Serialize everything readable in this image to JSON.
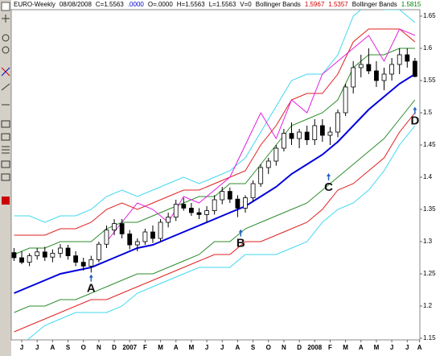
{
  "chart_data": {
    "type": "candlestick",
    "header": [
      {
        "text": "EURO-Weekly",
        "color": "#000000"
      },
      {
        "text": "08/08/2008",
        "color": "#000000"
      },
      {
        "text": "C=1.5563",
        "color": "#000000"
      },
      {
        "text": ".0000",
        "color": "#0000cc"
      },
      {
        "text": "O=.0000",
        "color": "#000000"
      },
      {
        "text": "H=1.5563",
        "color": "#000000"
      },
      {
        "text": "L=1.5563",
        "color": "#000000"
      },
      {
        "text": "V=0",
        "color": "#000000"
      },
      {
        "text": "Bollinger Bands",
        "color": "#000000"
      },
      {
        "text": "1.5967",
        "color": "#d00000"
      },
      {
        "text": "1.5357",
        "color": "#d00000"
      },
      {
        "text": "Bollinger Bands",
        "color": "#000000"
      },
      {
        "text": "1.5815",
        "color": "#008000"
      }
    ],
    "xlim": [
      -0.68,
      25.82
    ],
    "ylim": [
      1.1475,
      1.66
    ],
    "yticks": [
      1.15,
      1.2,
      1.25,
      1.3,
      1.35,
      1.4,
      1.45,
      1.5,
      1.55,
      1.6,
      1.65
    ],
    "xticks": [
      {
        "value": 0,
        "label": "J"
      },
      {
        "value": 1,
        "label": "J"
      },
      {
        "value": 2,
        "label": "A"
      },
      {
        "value": 3,
        "label": "S"
      },
      {
        "value": 4,
        "label": "O"
      },
      {
        "value": 5,
        "label": "N"
      },
      {
        "value": 6,
        "label": "D"
      },
      {
        "value": 7,
        "label": "2007"
      },
      {
        "value": 8,
        "label": "F"
      },
      {
        "value": 9,
        "label": "M"
      },
      {
        "value": 10,
        "label": "A"
      },
      {
        "value": 11,
        "label": "M"
      },
      {
        "value": 12,
        "label": "J"
      },
      {
        "value": 13,
        "label": "J"
      },
      {
        "value": 14,
        "label": "A"
      },
      {
        "value": 15,
        "label": "S"
      },
      {
        "value": 16,
        "label": "O"
      },
      {
        "value": 17,
        "label": "N"
      },
      {
        "value": 18,
        "label": "D"
      },
      {
        "value": 19,
        "label": "2008"
      },
      {
        "value": 20,
        "label": "F"
      },
      {
        "value": 21,
        "label": "M"
      },
      {
        "value": 22,
        "label": "A"
      },
      {
        "value": 23,
        "label": "M"
      },
      {
        "value": 24,
        "label": "J"
      },
      {
        "value": 25,
        "label": "J"
      },
      {
        "value": 25.8,
        "label": "A"
      }
    ],
    "candles": {
      "up_color": "#ffffff",
      "down_color": "#000000",
      "x": [
        -0.5,
        0,
        0.5,
        1,
        1.5,
        2,
        2.5,
        3,
        3.5,
        4,
        4.5,
        5,
        5.5,
        6,
        6.5,
        7,
        7.5,
        8,
        8.5,
        9,
        9.5,
        10,
        10.5,
        11,
        11.5,
        12,
        12.5,
        13,
        13.5,
        14,
        14.5,
        15,
        15.5,
        16,
        16.5,
        17,
        17.5,
        18,
        18.5,
        19,
        19.5,
        20,
        20.5,
        21,
        21.5,
        22,
        22.5,
        23,
        23.5,
        24,
        24.5,
        25,
        25.5
      ],
      "open": [
        1.283,
        1.275,
        1.268,
        1.278,
        1.284,
        1.276,
        1.282,
        1.29,
        1.278,
        1.268,
        1.262,
        1.272,
        1.296,
        1.318,
        1.328,
        1.312,
        1.295,
        1.3,
        1.315,
        1.305,
        1.33,
        1.338,
        1.358,
        1.352,
        1.345,
        1.342,
        1.348,
        1.365,
        1.378,
        1.366,
        1.352,
        1.368,
        1.39,
        1.415,
        1.425,
        1.445,
        1.468,
        1.46,
        1.47,
        1.458,
        1.48,
        1.465,
        1.47,
        1.5,
        1.54,
        1.57,
        1.575,
        1.565,
        1.55,
        1.56,
        1.575,
        1.59,
        1.58
      ],
      "high": [
        1.29,
        1.285,
        1.282,
        1.29,
        1.292,
        1.288,
        1.296,
        1.295,
        1.285,
        1.275,
        1.278,
        1.3,
        1.325,
        1.335,
        1.335,
        1.318,
        1.305,
        1.32,
        1.325,
        1.335,
        1.345,
        1.365,
        1.368,
        1.36,
        1.352,
        1.355,
        1.372,
        1.385,
        1.384,
        1.372,
        1.372,
        1.395,
        1.42,
        1.43,
        1.45,
        1.475,
        1.485,
        1.475,
        1.48,
        1.49,
        1.49,
        1.478,
        1.505,
        1.545,
        1.58,
        1.59,
        1.6,
        1.58,
        1.57,
        1.585,
        1.6,
        1.6,
        1.585
      ],
      "low": [
        1.27,
        1.265,
        1.262,
        1.272,
        1.27,
        1.268,
        1.275,
        1.272,
        1.262,
        1.255,
        1.252,
        1.268,
        1.29,
        1.31,
        1.305,
        1.288,
        1.285,
        1.295,
        1.298,
        1.3,
        1.322,
        1.332,
        1.348,
        1.34,
        1.335,
        1.33,
        1.342,
        1.358,
        1.36,
        1.338,
        1.345,
        1.362,
        1.385,
        1.405,
        1.418,
        1.44,
        1.45,
        1.445,
        1.45,
        1.45,
        1.455,
        1.45,
        1.462,
        1.495,
        1.53,
        1.555,
        1.56,
        1.54,
        1.535,
        1.55,
        1.56,
        1.57,
        1.555
      ],
      "close": [
        1.275,
        1.268,
        1.278,
        1.284,
        1.276,
        1.282,
        1.29,
        1.278,
        1.268,
        1.262,
        1.272,
        1.296,
        1.318,
        1.328,
        1.312,
        1.295,
        1.3,
        1.315,
        1.305,
        1.33,
        1.338,
        1.358,
        1.352,
        1.345,
        1.342,
        1.348,
        1.365,
        1.378,
        1.366,
        1.352,
        1.368,
        1.39,
        1.415,
        1.425,
        1.445,
        1.468,
        1.46,
        1.47,
        1.458,
        1.48,
        1.465,
        1.47,
        1.5,
        1.54,
        1.57,
        1.575,
        1.565,
        1.55,
        1.56,
        1.575,
        1.59,
        1.58,
        1.5563
      ]
    },
    "lines": [
      {
        "color": "#0000dd",
        "width": 2,
        "x": [
          -0.5,
          0.5,
          1.5,
          2.5,
          3.5,
          4.5,
          5.5,
          6.5,
          7.5,
          8.5,
          9.5,
          10.5,
          11.5,
          12.5,
          13.5,
          14.5,
          15.5,
          16.5,
          17.5,
          18.5,
          19.5,
          20.5,
          21.5,
          22.5,
          23.5,
          24.5,
          25.5
        ],
        "values": [
          1.22,
          1.23,
          1.24,
          1.25,
          1.255,
          1.26,
          1.27,
          1.28,
          1.29,
          1.295,
          1.305,
          1.315,
          1.325,
          1.335,
          1.345,
          1.355,
          1.37,
          1.385,
          1.405,
          1.42,
          1.435,
          1.455,
          1.48,
          1.505,
          1.525,
          1.545,
          1.56
        ]
      },
      {
        "color": "#2e8b2e",
        "width": 1,
        "x": [
          -0.5,
          0.5,
          1.5,
          2.5,
          3.5,
          4.5,
          5.5,
          6.5,
          7.5,
          8.5,
          9.5,
          10.5,
          11.5,
          12.5,
          13.5,
          14.5,
          15.5,
          16.5,
          17.5,
          18.5,
          19.5,
          20.5,
          21.5,
          22.5,
          23.5,
          24.5,
          25.5
        ],
        "values": [
          1.28,
          1.29,
          1.29,
          1.3,
          1.3,
          1.3,
          1.32,
          1.33,
          1.33,
          1.34,
          1.35,
          1.36,
          1.37,
          1.37,
          1.39,
          1.39,
          1.42,
          1.45,
          1.48,
          1.49,
          1.5,
          1.52,
          1.57,
          1.59,
          1.59,
          1.6,
          1.6
        ]
      },
      {
        "color": "#2e8b2e",
        "width": 1,
        "x": [
          -0.5,
          0.5,
          1.5,
          2.5,
          3.5,
          4.5,
          5.5,
          6.5,
          7.5,
          8.5,
          9.5,
          10.5,
          11.5,
          12.5,
          13.5,
          14.5,
          15.5,
          16.5,
          17.5,
          18.5,
          19.5,
          20.5,
          21.5,
          22.5,
          23.5,
          24.5,
          25.5
        ],
        "values": [
          1.19,
          1.2,
          1.2,
          1.21,
          1.21,
          1.22,
          1.23,
          1.24,
          1.25,
          1.25,
          1.26,
          1.27,
          1.28,
          1.3,
          1.3,
          1.32,
          1.33,
          1.34,
          1.35,
          1.36,
          1.38,
          1.4,
          1.42,
          1.44,
          1.46,
          1.49,
          1.52
        ]
      },
      {
        "color": "#e02020",
        "width": 1,
        "x": [
          -0.5,
          0.5,
          1.5,
          2.5,
          3.5,
          4.5,
          5.5,
          6.5,
          7.5,
          8.5,
          9.5,
          10.5,
          11.5,
          12.5,
          13.5,
          14.5,
          15.5,
          16.5,
          17.5,
          18.5,
          19.5,
          20.5,
          21.5,
          22.5,
          23.5,
          24.5,
          25.5
        ],
        "values": [
          1.31,
          1.31,
          1.31,
          1.32,
          1.32,
          1.33,
          1.35,
          1.36,
          1.35,
          1.36,
          1.37,
          1.38,
          1.38,
          1.39,
          1.4,
          1.41,
          1.45,
          1.48,
          1.52,
          1.53,
          1.53,
          1.56,
          1.61,
          1.63,
          1.63,
          1.63,
          1.61
        ]
      },
      {
        "color": "#e02020",
        "width": 1,
        "x": [
          -0.5,
          0.5,
          1.5,
          2.5,
          3.5,
          4.5,
          5.5,
          6.5,
          7.5,
          8.5,
          9.5,
          10.5,
          11.5,
          12.5,
          13.5,
          14.5,
          15.5,
          16.5,
          17.5,
          18.5,
          19.5,
          20.5,
          21.5,
          22.5,
          23.5,
          24.5,
          25.5
        ],
        "values": [
          1.16,
          1.17,
          1.18,
          1.19,
          1.2,
          1.21,
          1.21,
          1.22,
          1.23,
          1.24,
          1.25,
          1.26,
          1.27,
          1.28,
          1.28,
          1.3,
          1.3,
          1.31,
          1.32,
          1.33,
          1.35,
          1.38,
          1.39,
          1.41,
          1.43,
          1.47,
          1.5
        ]
      },
      {
        "color": "#40d8f0",
        "width": 1,
        "x": [
          -0.5,
          0.5,
          1.5,
          2.5,
          3.5,
          4.5,
          5.5,
          6.5,
          7.5,
          8.5,
          9.5,
          10.5,
          11.5,
          12.5,
          13.5,
          14.5,
          15.5,
          16.5,
          17.5,
          18.5,
          19.5,
          20.5,
          21.5,
          22.5,
          23.5,
          24.5,
          25.5
        ],
        "values": [
          1.34,
          1.34,
          1.33,
          1.34,
          1.34,
          1.35,
          1.37,
          1.38,
          1.37,
          1.38,
          1.39,
          1.4,
          1.39,
          1.4,
          1.41,
          1.43,
          1.47,
          1.51,
          1.55,
          1.56,
          1.56,
          1.59,
          1.65,
          1.67,
          1.66,
          1.66,
          1.64
        ]
      },
      {
        "color": "#40d8f0",
        "width": 1,
        "x": [
          -0.5,
          0.5,
          1.5,
          2.5,
          3.5,
          4.5,
          5.5,
          6.5,
          7.5,
          8.5,
          9.5,
          10.5,
          11.5,
          12.5,
          13.5,
          14.5,
          15.5,
          16.5,
          17.5,
          18.5,
          19.5,
          20.5,
          21.5,
          22.5,
          23.5,
          24.5,
          25.5
        ],
        "values": [
          1.13,
          1.15,
          1.17,
          1.18,
          1.19,
          1.19,
          1.19,
          1.2,
          1.22,
          1.23,
          1.24,
          1.25,
          1.26,
          1.26,
          1.26,
          1.28,
          1.28,
          1.28,
          1.29,
          1.3,
          1.33,
          1.35,
          1.36,
          1.38,
          1.41,
          1.45,
          1.48
        ]
      },
      {
        "color": "#e020e0",
        "width": 1,
        "x": [
          5.5,
          6.5,
          7.5,
          8.5,
          9.5,
          10.5,
          11.5,
          12.5,
          13.5,
          14.5,
          15.5,
          16.5,
          17.5,
          18.5,
          19.5,
          20.5,
          21.5,
          22.5,
          23.5,
          24.5,
          25.5
        ],
        "values": [
          1.3,
          1.33,
          1.36,
          1.35,
          1.33,
          1.37,
          1.36,
          1.38,
          1.4,
          1.45,
          1.5,
          1.46,
          1.52,
          1.5,
          1.56,
          1.58,
          1.6,
          1.62,
          1.58,
          1.63,
          1.62
        ]
      }
    ],
    "annotations": [
      {
        "text": "A",
        "x": 4.5,
        "y": 1.228
      },
      {
        "text": "B",
        "x": 14.2,
        "y": 1.298
      },
      {
        "text": "C",
        "x": 19.9,
        "y": 1.385
      },
      {
        "text": "D",
        "x": 25.5,
        "y": 1.488
      }
    ]
  }
}
